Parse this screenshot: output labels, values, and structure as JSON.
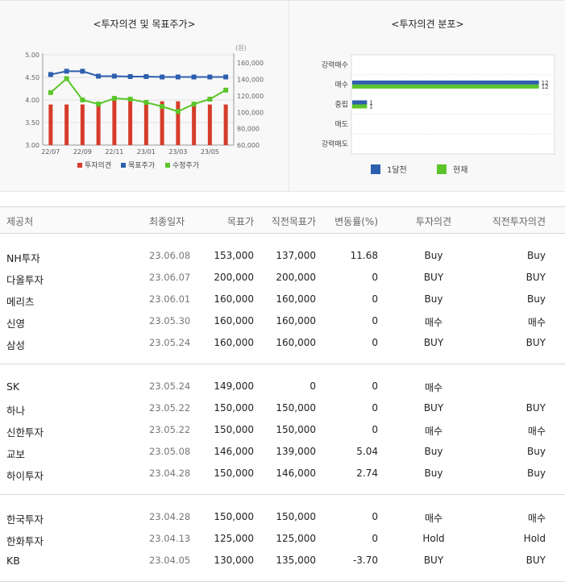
{
  "chart_data": [
    {
      "type": "bar+line",
      "title": "<투자의견 및 목표주가>",
      "x": [
        "22/07",
        "22/08",
        "22/09",
        "22/10",
        "22/11",
        "22/12",
        "23/01",
        "23/02",
        "23/03",
        "23/04",
        "23/05",
        "23/06"
      ],
      "x_tick_labels": [
        "22/07",
        "22/09",
        "22/11",
        "23/01",
        "23/03",
        "23/05"
      ],
      "left_axis": {
        "ticks": [
          "5.00",
          "4.50",
          "4.00",
          "3.50",
          "3.00"
        ],
        "ylim": [
          3.0,
          5.0
        ]
      },
      "right_axis": {
        "unit": "(원)",
        "ticks": [
          "160,000",
          "140,000",
          "120,000",
          "100,000",
          "80,000",
          "60,000"
        ],
        "ylim": [
          60000,
          170000
        ]
      },
      "series": [
        {
          "name": "투자의견",
          "kind": "bar",
          "axis": "left",
          "color": "#d63c2a",
          "values": [
            3.9,
            3.9,
            3.9,
            3.9,
            4.0,
            3.97,
            3.97,
            3.97,
            3.97,
            3.9,
            3.9,
            3.9
          ]
        },
        {
          "name": "목표주가",
          "kind": "line",
          "axis": "right",
          "color": "#2e5fae",
          "values": [
            146000,
            150000,
            150000,
            144000,
            144000,
            143500,
            143500,
            143000,
            143000,
            143000,
            143000,
            143000
          ]
        },
        {
          "name": "수정주가",
          "kind": "line",
          "axis": "right",
          "color": "#5cc52a",
          "values": [
            124000,
            141000,
            115000,
            110000,
            117000,
            116000,
            112000,
            107000,
            101000,
            110000,
            116000,
            127000
          ]
        }
      ],
      "legend": "bottom"
    },
    {
      "type": "bar",
      "orientation": "horizontal",
      "title": "<투자의견 분포>",
      "categories": [
        "강력매수",
        "매수",
        "중립",
        "매도",
        "강력매도"
      ],
      "series": [
        {
          "name": "1달전",
          "color": "#2e5fae",
          "values": [
            0,
            12,
            1,
            0,
            0
          ]
        },
        {
          "name": "현재",
          "color": "#5cc52a",
          "values": [
            0,
            12,
            1,
            0,
            0
          ]
        }
      ],
      "legend": "bottom"
    }
  ],
  "table": {
    "headers": {
      "firm": "제공처",
      "date": "최종일자",
      "target": "목표가",
      "prev_target": "직전목표가",
      "change": "변동률(%)",
      "opinion": "투자의견",
      "prev_opinion": "직전투자의견"
    },
    "groups": [
      [
        {
          "firm": "NH투자",
          "date": "23.06.08",
          "target": "153,000",
          "prev_target": "137,000",
          "change": "11.68",
          "opinion": "Buy",
          "prev_opinion": "Buy"
        },
        {
          "firm": "다올투자",
          "date": "23.06.07",
          "target": "200,000",
          "prev_target": "200,000",
          "change": "0",
          "opinion": "BUY",
          "prev_opinion": "BUY"
        },
        {
          "firm": "메리츠",
          "date": "23.06.01",
          "target": "160,000",
          "prev_target": "160,000",
          "change": "0",
          "opinion": "Buy",
          "prev_opinion": "Buy"
        },
        {
          "firm": "신영",
          "date": "23.05.30",
          "target": "160,000",
          "prev_target": "160,000",
          "change": "0",
          "opinion": "매수",
          "prev_opinion": "매수"
        },
        {
          "firm": "삼성",
          "date": "23.05.24",
          "target": "160,000",
          "prev_target": "160,000",
          "change": "0",
          "opinion": "BUY",
          "prev_opinion": "BUY"
        }
      ],
      [
        {
          "firm": "SK",
          "date": "23.05.24",
          "target": "149,000",
          "prev_target": "0",
          "change": "0",
          "opinion": "매수",
          "prev_opinion": ""
        },
        {
          "firm": "하나",
          "date": "23.05.22",
          "target": "150,000",
          "prev_target": "150,000",
          "change": "0",
          "opinion": "BUY",
          "prev_opinion": "BUY"
        },
        {
          "firm": "신한투자",
          "date": "23.05.22",
          "target": "150,000",
          "prev_target": "150,000",
          "change": "0",
          "opinion": "매수",
          "prev_opinion": "매수"
        },
        {
          "firm": "교보",
          "date": "23.05.08",
          "target": "146,000",
          "prev_target": "139,000",
          "change": "5.04",
          "opinion": "Buy",
          "prev_opinion": "Buy"
        },
        {
          "firm": "하이투자",
          "date": "23.04.28",
          "target": "150,000",
          "prev_target": "146,000",
          "change": "2.74",
          "opinion": "Buy",
          "prev_opinion": "Buy"
        }
      ],
      [
        {
          "firm": "한국투자",
          "date": "23.04.28",
          "target": "150,000",
          "prev_target": "150,000",
          "change": "0",
          "opinion": "매수",
          "prev_opinion": "매수"
        },
        {
          "firm": "한화투자",
          "date": "23.04.13",
          "target": "125,000",
          "prev_target": "125,000",
          "change": "0",
          "opinion": "Hold",
          "prev_opinion": "Hold"
        },
        {
          "firm": "KB",
          "date": "23.04.05",
          "target": "130,000",
          "prev_target": "135,000",
          "change": "-3.70",
          "opinion": "BUY",
          "prev_opinion": "BUY"
        }
      ]
    ]
  }
}
